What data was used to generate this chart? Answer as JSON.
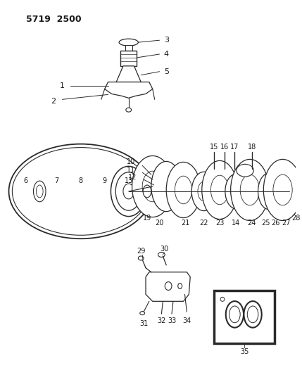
{
  "title": "5719  2500",
  "bg_color": "#ffffff",
  "line_color": "#2a2a2a",
  "text_color": "#1a1a1a",
  "figsize": [
    4.29,
    5.33
  ],
  "dpi": 100
}
